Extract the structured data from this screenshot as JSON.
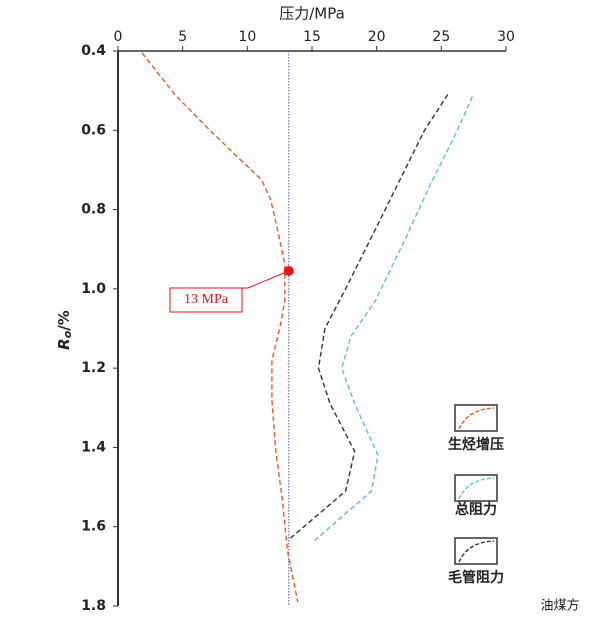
{
  "chart_data": {
    "type": "line",
    "title": "压力/MPa",
    "y_label": {
      "main": "R",
      "sub": "o",
      "unit": "/%"
    },
    "xlim": [
      0,
      30
    ],
    "xticks": [
      0,
      5,
      10,
      15,
      20,
      25,
      30
    ],
    "ylim": [
      0.4,
      1.8
    ],
    "y_inverted": true,
    "yticks": [
      0.4,
      0.6,
      0.8,
      {
        "value": 1,
        "label": "1.0"
      },
      1.2,
      1.4,
      1.6,
      1.8
    ],
    "series": [
      {
        "name": "生烃增压",
        "color": "#f05a28",
        "x": [
          1.86,
          4.4,
          6.7,
          9.0,
          11.1,
          11.8,
          12.4,
          12.9,
          12.9,
          12.5,
          11.9,
          11.9,
          12.2,
          12.7,
          13.1,
          13.9
        ],
        "values": [
          0.405,
          0.51,
          0.587,
          0.66,
          0.725,
          0.775,
          0.86,
          0.94,
          1.03,
          1.1,
          1.18,
          1.28,
          1.41,
          1.53,
          1.66,
          1.79
        ]
      },
      {
        "name": "总阻力",
        "color": "#5bc0de",
        "x": [
          27.4,
          26.1,
          24.1,
          22.2,
          19.9,
          18.0,
          17.3,
          18.3,
          20.1,
          19.6,
          15.2
        ],
        "values": [
          0.515,
          0.61,
          0.74,
          0.875,
          1.03,
          1.12,
          1.2,
          1.29,
          1.42,
          1.51,
          1.635
        ]
      },
      {
        "name": "毛管阻力",
        "color": "#333333",
        "x": [
          25.5,
          23.7,
          21.8,
          19.9,
          17.6,
          16.0,
          15.5,
          16.4,
          18.3,
          17.6,
          13.3
        ],
        "values": [
          0.51,
          0.6,
          0.725,
          0.85,
          1.0,
          1.1,
          1.2,
          1.29,
          1.41,
          1.51,
          1.63
        ]
      }
    ],
    "reference_line": {
      "x": 13.2,
      "color": "#5a5ad6"
    },
    "marker": {
      "x": 13.2,
      "y": 0.955,
      "label": "13 MPa",
      "color": "#e8141b"
    },
    "watermark": "油煤方"
  }
}
